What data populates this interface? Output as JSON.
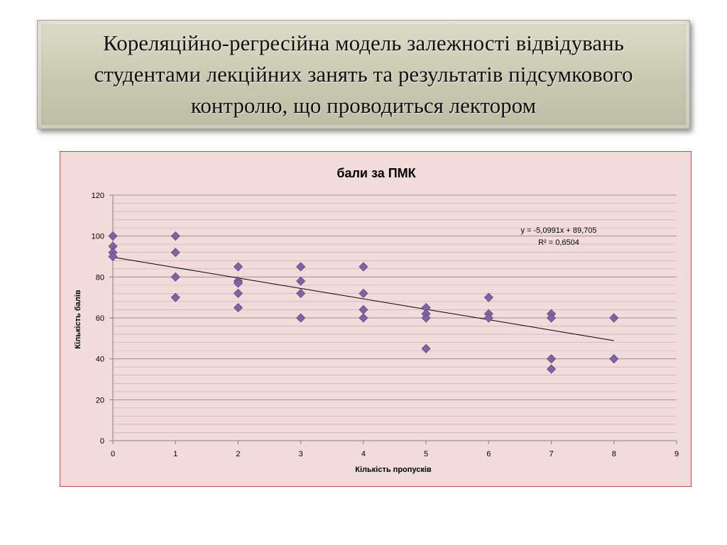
{
  "slide": {
    "title": "Кореляційно-регресійна модель залежності відвідувань студентами лекційних занять та результатів підсумкового контролю, що проводиться лектором"
  },
  "colors": {
    "chart_background": "#f2dcdb",
    "chart_border": "#c0504d",
    "marker": "#8064a2",
    "marker_edge": "#5f4a80",
    "trendline": "#000000",
    "gridline": "#8c8c8c"
  },
  "chart_data": {
    "type": "scatter",
    "title": "бали за ПМК",
    "xlabel": "Кількість пропусків",
    "ylabel": "Кількість балів",
    "xlim": [
      0,
      9
    ],
    "ylim": [
      0,
      120
    ],
    "x_ticks": [
      "0",
      "1",
      "2",
      "3",
      "4",
      "5",
      "6",
      "7",
      "8",
      "9"
    ],
    "y_ticks": [
      "0",
      "20",
      "40",
      "60",
      "80",
      "100",
      "120"
    ],
    "grid": "horizontal major and minor",
    "marker": "diamond",
    "points": [
      {
        "x": 0,
        "y": 100
      },
      {
        "x": 0,
        "y": 95
      },
      {
        "x": 0,
        "y": 92
      },
      {
        "x": 0,
        "y": 90
      },
      {
        "x": 1,
        "y": 100
      },
      {
        "x": 1,
        "y": 92
      },
      {
        "x": 1,
        "y": 80
      },
      {
        "x": 1,
        "y": 70
      },
      {
        "x": 2,
        "y": 85
      },
      {
        "x": 2,
        "y": 78
      },
      {
        "x": 2,
        "y": 77
      },
      {
        "x": 2,
        "y": 72
      },
      {
        "x": 2,
        "y": 65
      },
      {
        "x": 3,
        "y": 85
      },
      {
        "x": 3,
        "y": 78
      },
      {
        "x": 3,
        "y": 72
      },
      {
        "x": 3,
        "y": 60
      },
      {
        "x": 4,
        "y": 85
      },
      {
        "x": 4,
        "y": 72
      },
      {
        "x": 4,
        "y": 64
      },
      {
        "x": 4,
        "y": 60
      },
      {
        "x": 5,
        "y": 65
      },
      {
        "x": 5,
        "y": 62
      },
      {
        "x": 5,
        "y": 60
      },
      {
        "x": 5,
        "y": 45
      },
      {
        "x": 6,
        "y": 70
      },
      {
        "x": 6,
        "y": 62
      },
      {
        "x": 6,
        "y": 60
      },
      {
        "x": 7,
        "y": 62
      },
      {
        "x": 7,
        "y": 60
      },
      {
        "x": 7,
        "y": 40
      },
      {
        "x": 7,
        "y": 35
      },
      {
        "x": 8,
        "y": 60
      },
      {
        "x": 8,
        "y": 40
      }
    ],
    "trendline": {
      "slope": -5.0991,
      "intercept": 89.705,
      "x_range": [
        0,
        8
      ],
      "equation_label": "y = -5,0991x + 89,705",
      "r2_label": "R² = 0,6504"
    }
  }
}
